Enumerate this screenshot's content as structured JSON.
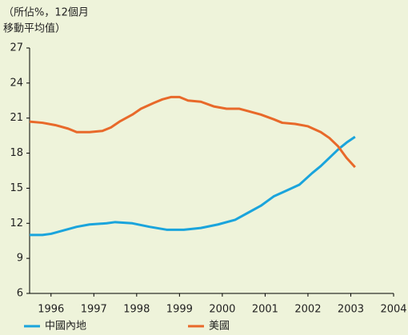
{
  "chart_data": {
    "type": "line",
    "y_label": [
      "（所佔%，12個月",
      "移動平均值）"
    ],
    "xlim": [
      1996,
      2004.5
    ],
    "xticks": [
      {
        "value": 1996.5,
        "label": "1996"
      },
      {
        "value": 1997.5,
        "label": "1997"
      },
      {
        "value": 1998.5,
        "label": "1998"
      },
      {
        "value": 1999.5,
        "label": "1999"
      },
      {
        "value": 2000.5,
        "label": "2000"
      },
      {
        "value": 2001.5,
        "label": "2001"
      },
      {
        "value": 2002.5,
        "label": "2002"
      },
      {
        "value": 2003.5,
        "label": "2003"
      },
      {
        "value": 2004.5,
        "label": "2004"
      }
    ],
    "ylim": [
      6,
      27
    ],
    "yticks": [
      6,
      9,
      12,
      15,
      18,
      21,
      24,
      27
    ],
    "grid": false,
    "series": [
      {
        "name": "中國內地",
        "color": "#1aa4dc",
        "x": [
          1996.0,
          1996.3,
          1996.5,
          1996.8,
          1997.1,
          1997.4,
          1997.8,
          1998.0,
          1998.4,
          1998.8,
          1999.2,
          1999.6,
          2000.0,
          2000.4,
          2000.8,
          2001.1,
          2001.4,
          2001.7,
          2002.0,
          2002.3,
          2002.6,
          2002.8,
          2003.0,
          2003.2,
          2003.4,
          2003.6
        ],
        "values": [
          11.0,
          11.0,
          11.1,
          11.4,
          11.7,
          11.9,
          12.0,
          12.1,
          12.0,
          11.7,
          11.45,
          11.45,
          11.6,
          11.9,
          12.3,
          12.9,
          13.5,
          14.3,
          14.8,
          15.3,
          16.3,
          16.9,
          17.6,
          18.3,
          18.9,
          19.4
        ]
      },
      {
        "name": "美國",
        "color": "#e8692a",
        "x": [
          1996.0,
          1996.3,
          1996.6,
          1996.9,
          1997.1,
          1997.4,
          1997.7,
          1997.9,
          1998.1,
          1998.4,
          1998.6,
          1998.9,
          1999.1,
          1999.3,
          1999.5,
          1999.7,
          2000.0,
          2000.3,
          2000.6,
          2000.9,
          2001.1,
          2001.4,
          2001.7,
          2001.9,
          2002.2,
          2002.5,
          2002.8,
          2003.0,
          2003.2,
          2003.4,
          2003.6
        ],
        "values": [
          20.7,
          20.6,
          20.4,
          20.1,
          19.8,
          19.8,
          19.9,
          20.2,
          20.7,
          21.3,
          21.8,
          22.3,
          22.6,
          22.8,
          22.8,
          22.5,
          22.4,
          22.0,
          21.8,
          21.8,
          21.6,
          21.3,
          20.9,
          20.6,
          20.5,
          20.3,
          19.8,
          19.3,
          18.6,
          17.6,
          16.8
        ]
      }
    ]
  }
}
